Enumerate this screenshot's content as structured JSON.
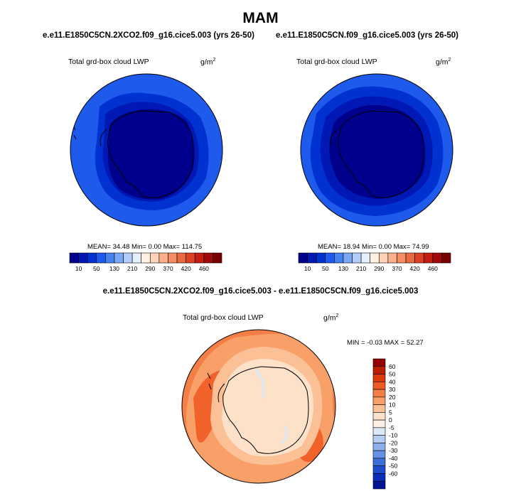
{
  "title": "MAM",
  "panels": [
    {
      "case": "e.e11.E1850C5CN.2XCO2.f09_g16.cice5.003 (yrs 26-50)",
      "variable": "Total grd-box cloud LWP",
      "units_base": "g/m",
      "units_exp": "2",
      "stats": "MEAN=  34.48  Min=   0.00  Max= 114.75"
    },
    {
      "case": "e.e11.E1850C5CN.f09_g16.cice5.003 (yrs 26-50)",
      "variable": "Total grd-box cloud LWP",
      "units_base": "g/m",
      "units_exp": "2",
      "stats": "MEAN=  18.94  Min=   0.00  Max=  74.99"
    }
  ],
  "diff": {
    "case": "e.e11.E1850C5CN.2XCO2.f09_g16.cice5.003 - e.e11.E1850C5CN.f09_g16.cice5.003",
    "variable": "Total grd-box cloud LWP",
    "units_base": "g/m",
    "units_exp": "2",
    "stats": "MIN =  -0.03 MAX =  52.27"
  },
  "chart_data": {
    "type": "heatmap",
    "projection": "south polar stereographic",
    "abs_colorbar": {
      "labels": [
        "10",
        "50",
        "130",
        "210",
        "290",
        "370",
        "420",
        "460"
      ],
      "colors": [
        "#00008c",
        "#0018b4",
        "#0032d2",
        "#1e5aeb",
        "#4682f0",
        "#7aa8f5",
        "#b4cdf8",
        "#e6f0fc",
        "#fff0e1",
        "#fdd2b9",
        "#fcaf8c",
        "#f58c64",
        "#eb6941",
        "#dc4123",
        "#c31e0f",
        "#a00a0a",
        "#780000"
      ]
    },
    "diff_colorbar": {
      "labels": [
        "60",
        "50",
        "40",
        "30",
        "20",
        "10",
        "5",
        "0",
        "-5",
        "-10",
        "-20",
        "-30",
        "-40",
        "-50",
        "-60"
      ],
      "colors": [
        "#960000",
        "#bd1e00",
        "#dc3c0a",
        "#f05a23",
        "#f57d46",
        "#f8a068",
        "#fbc096",
        "#fde1c8",
        "#fcefe4",
        "#dbe8f8",
        "#b4cdf3",
        "#8caeec",
        "#6490e6",
        "#3c6edc",
        "#1e4bcd",
        "#0a2db9",
        "#001496"
      ]
    }
  }
}
